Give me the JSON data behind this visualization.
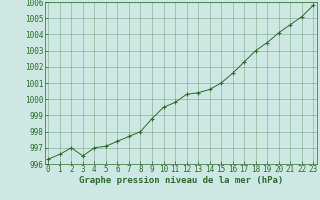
{
  "x": [
    0,
    1,
    2,
    3,
    4,
    5,
    6,
    7,
    8,
    9,
    10,
    11,
    12,
    13,
    14,
    15,
    16,
    17,
    18,
    19,
    20,
    21,
    22,
    23
  ],
  "y": [
    996.3,
    996.6,
    997.0,
    996.5,
    997.0,
    997.1,
    997.4,
    997.7,
    998.0,
    998.8,
    999.5,
    999.8,
    1000.3,
    1000.4,
    1000.6,
    1001.0,
    1001.6,
    1002.3,
    1003.0,
    1003.5,
    1004.1,
    1004.6,
    1005.1,
    1005.8
  ],
  "line_color": "#2d6a2d",
  "marker_color": "#2d6a2d",
  "bg_plot": "#cde8e2",
  "bg_fig": "#cde8e2",
  "grid_color": "#2d6a2d",
  "xlabel": "Graphe pression niveau de la mer (hPa)",
  "xlabel_fontsize": 6.5,
  "xlabel_color": "#2d6a2d",
  "tick_color": "#2d6a2d",
  "tick_fontsize": 5.5,
  "ylim": [
    996,
    1006
  ],
  "yticks": [
    996,
    997,
    998,
    999,
    1000,
    1001,
    1002,
    1003,
    1004,
    1005,
    1006
  ],
  "xticks": [
    0,
    1,
    2,
    3,
    4,
    5,
    6,
    7,
    8,
    9,
    10,
    11,
    12,
    13,
    14,
    15,
    16,
    17,
    18,
    19,
    20,
    21,
    22,
    23
  ],
  "xlim": [
    -0.3,
    23.3
  ]
}
